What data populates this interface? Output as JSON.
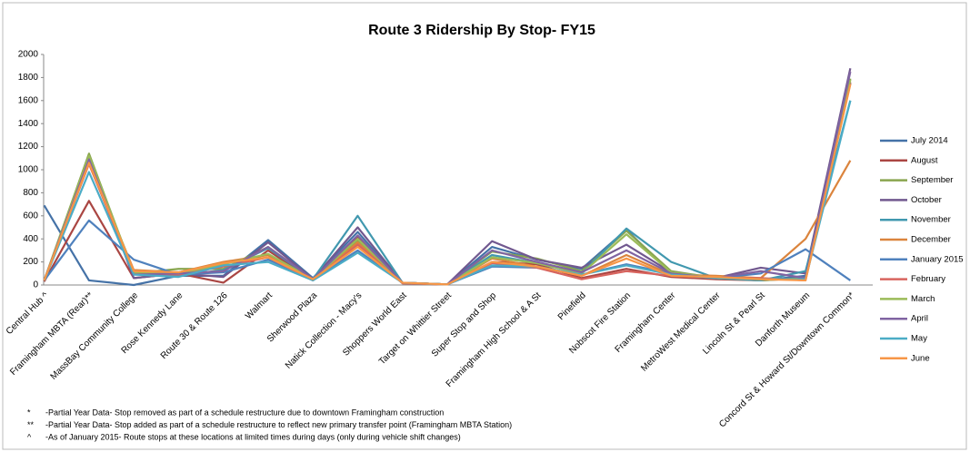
{
  "chart_data": {
    "type": "line",
    "title": "Route 3 Ridership By Stop- FY15",
    "categories": [
      "Central Hub ^",
      "Framingham MBTA (Rear)**",
      "MassBay Community College",
      "Rose Kennedy Lane",
      "Route 30 & Route 126",
      "Walmart",
      "Sherwood Plaza",
      "Natick Collection - Macy's",
      "Shoppers World East",
      "Target on Whittier Street",
      "Super Stop and Shop",
      "Framingham High School & A St",
      "Pinefield",
      "Nobscot Fire Station",
      "Framingham Center",
      "MetroWest Medical Center",
      "Lincoln St & Pearl St",
      "Danforth Museum",
      "Concord St & Howard St/Downtown Common*"
    ],
    "ylim": [
      0,
      2000
    ],
    "yticks": [
      0,
      200,
      400,
      600,
      800,
      1000,
      1200,
      1400,
      1600,
      1800,
      2000
    ],
    "series": [
      {
        "name": "July 2014",
        "color": "#4572a7",
        "values": [
          690,
          40,
          0,
          80,
          80,
          390,
          60,
          460,
          20,
          5,
          330,
          220,
          140,
          480,
          100,
          60,
          40,
          80,
          1750
        ]
      },
      {
        "name": "August",
        "color": "#aa4643",
        "values": [
          30,
          730,
          60,
          100,
          20,
          300,
          40,
          420,
          15,
          5,
          200,
          180,
          60,
          140,
          70,
          50,
          40,
          60,
          1760
        ]
      },
      {
        "name": "September",
        "color": "#89a54e",
        "values": [
          40,
          1140,
          100,
          140,
          140,
          330,
          50,
          390,
          20,
          5,
          290,
          230,
          120,
          470,
          120,
          60,
          40,
          60,
          1790
        ]
      },
      {
        "name": "October",
        "color": "#71588f",
        "values": [
          40,
          1090,
          60,
          100,
          70,
          370,
          50,
          500,
          20,
          5,
          380,
          220,
          150,
          350,
          110,
          60,
          150,
          100,
          1880
        ]
      },
      {
        "name": "November",
        "color": "#4198af",
        "values": [
          40,
          1080,
          110,
          80,
          130,
          320,
          50,
          600,
          20,
          5,
          260,
          190,
          100,
          490,
          200,
          60,
          40,
          120,
          1600
        ]
      },
      {
        "name": "December",
        "color": "#db843d",
        "values": [
          40,
          1070,
          130,
          110,
          200,
          260,
          50,
          370,
          20,
          5,
          230,
          160,
          80,
          260,
          90,
          80,
          60,
          400,
          1080
        ]
      },
      {
        "name": "January 2015",
        "color": "#4f81bd",
        "values": [
          40,
          560,
          220,
          90,
          110,
          220,
          50,
          300,
          20,
          5,
          160,
          150,
          90,
          180,
          100,
          60,
          100,
          310,
          40
        ]
      },
      {
        "name": "February",
        "color": "#d8645e",
        "values": [
          40,
          1050,
          100,
          90,
          160,
          240,
          40,
          350,
          15,
          5,
          190,
          150,
          50,
          120,
          80,
          60,
          60,
          40,
          1750
        ]
      },
      {
        "name": "March",
        "color": "#9bbb59",
        "values": [
          40,
          1120,
          110,
          100,
          180,
          270,
          50,
          400,
          20,
          5,
          240,
          190,
          100,
          440,
          110,
          60,
          50,
          50,
          1780
        ]
      },
      {
        "name": "April",
        "color": "#8064a2",
        "values": [
          40,
          1090,
          90,
          100,
          120,
          330,
          50,
          430,
          20,
          5,
          300,
          200,
          110,
          300,
          100,
          60,
          120,
          60,
          1850
        ]
      },
      {
        "name": "May",
        "color": "#4bacc6",
        "values": [
          40,
          980,
          90,
          70,
          170,
          200,
          40,
          280,
          20,
          5,
          170,
          160,
          90,
          170,
          90,
          60,
          50,
          50,
          1600
        ]
      },
      {
        "name": "June",
        "color": "#f79646",
        "values": [
          40,
          1060,
          120,
          110,
          190,
          240,
          50,
          330,
          20,
          5,
          200,
          160,
          80,
          230,
          80,
          70,
          50,
          40,
          1740
        ]
      }
    ],
    "footnotes": [
      {
        "marker": "*",
        "text": "-Partial Year Data- Stop removed as part of a schedule restructure due to downtown Framingham construction"
      },
      {
        "marker": "**",
        "text": "-Partial Year Data- Stop added as part of a schedule restructure to reflect new primary transfer point (Framingham MBTA Station)"
      },
      {
        "marker": "^",
        "text": "-As of January 2015- Route stops at these locations at limited times during days (only during vehicle shift changes)"
      }
    ]
  }
}
